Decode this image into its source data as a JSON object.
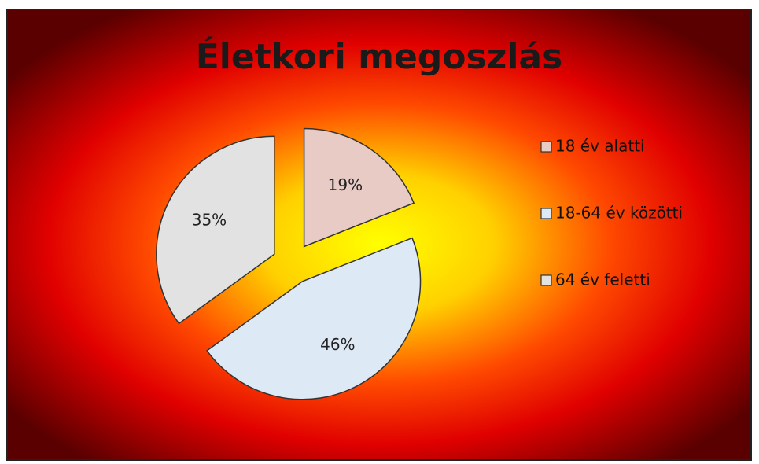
{
  "chart_data": {
    "type": "pie",
    "title": "Életkori megoszlás",
    "categories": [
      "18 év alatti",
      "18-64 év közötti",
      "64 év feletti"
    ],
    "values": [
      19,
      46,
      35
    ],
    "value_labels": [
      "19%",
      "46%",
      "35%"
    ],
    "colors": [
      "#e9cbc6",
      "#dde9f5",
      "#e2e2e2"
    ],
    "legend": "right"
  }
}
